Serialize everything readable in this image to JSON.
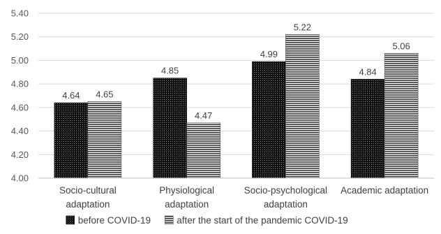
{
  "chart_data": {
    "type": "bar",
    "categories": [
      [
        "Socio-cultural",
        "adaptation"
      ],
      [
        "Physiological",
        "adaptation"
      ],
      [
        "Socio-psychological",
        "adaptation"
      ],
      [
        "Academic adaptation"
      ]
    ],
    "series": [
      {
        "name": "before COVID-19",
        "values": [
          4.64,
          4.85,
          4.99,
          4.84
        ],
        "pattern": "dots",
        "color": "#1a1a1a"
      },
      {
        "name": "after the start of the pandemic COVID-19",
        "values": [
          4.65,
          4.47,
          5.22,
          5.06
        ],
        "pattern": "hstripes",
        "color": "#555555"
      }
    ],
    "data_labels": [
      [
        "4.64",
        "4.85",
        "4.99",
        "4.84"
      ],
      [
        "4.65",
        "4.47",
        "5.22",
        "5.06"
      ]
    ],
    "ylim": [
      4.0,
      5.4
    ],
    "yticks": [
      "4.00",
      "4.20",
      "4.40",
      "4.60",
      "4.80",
      "5.00",
      "5.20",
      "5.40"
    ],
    "grid": true,
    "legend_position": "bottom",
    "title": "",
    "xlabel": "",
    "ylabel": ""
  }
}
